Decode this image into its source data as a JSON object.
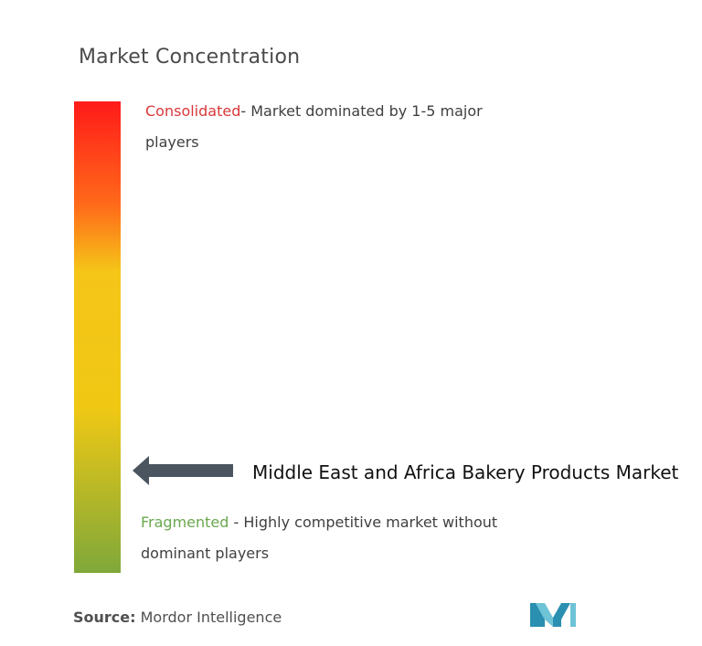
{
  "chart_data": {
    "type": "concentration-scale",
    "title": "Market Concentration",
    "scale": {
      "top": {
        "label": "Consolidated",
        "description": "- Market dominated by 1-5 major players",
        "label_color": "#d9383a"
      },
      "bottom": {
        "label": "Fragmented",
        "description": " - Highly competitive market without dominant players",
        "label_color": "#6aa84f"
      },
      "gradient_colors": [
        "#ff1a1a",
        "#ff6a1a",
        "#f5c518",
        "#f0c814",
        "#7fa83a"
      ]
    },
    "marker": {
      "label": "Middle East and Africa Bakery Products Market",
      "position_fraction_from_top": 0.78
    }
  },
  "source": {
    "label": "Source:",
    "text": " Mordor Intelligence"
  },
  "logo": {
    "name": "mordor-intelligence-logo",
    "color": "#4fb0c6"
  },
  "colors": {
    "arrow": "#4a5560"
  }
}
